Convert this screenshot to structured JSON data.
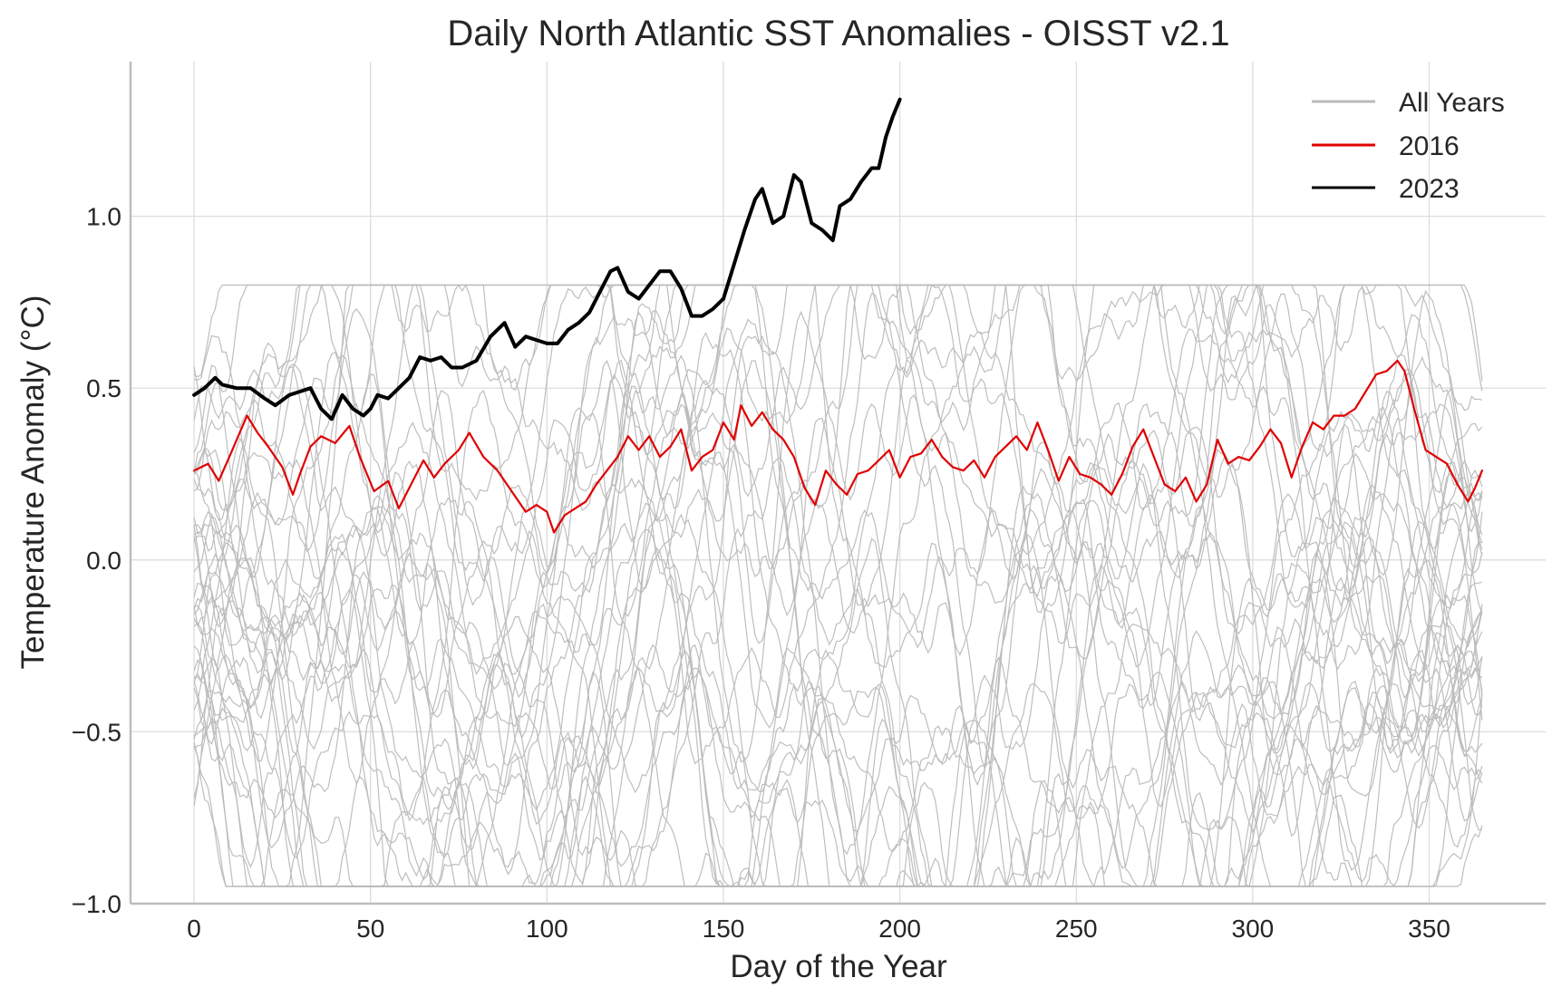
{
  "chart_data": {
    "type": "line",
    "title": "Daily North Atlantic SST Anomalies - OISST v2.1",
    "xlabel": "Day of the Year",
    "ylabel": "Temperature Anomaly (°C)",
    "xlim": [
      -18,
      383
    ],
    "ylim": [
      -1.0,
      1.45
    ],
    "xticks": [
      0,
      50,
      100,
      150,
      200,
      250,
      300,
      350
    ],
    "yticks": [
      -1.0,
      -0.5,
      0.0,
      0.5,
      1.0
    ],
    "xtick_labels": [
      "0",
      "50",
      "100",
      "150",
      "200",
      "250",
      "300",
      "350"
    ],
    "ytick_labels": [
      "−1.0",
      "−0.5",
      "0.0",
      "0.5",
      "1.0"
    ],
    "grid": true,
    "legend": {
      "position": "top-right",
      "entries": [
        "All Years",
        "2016",
        "2023"
      ]
    },
    "colors": {
      "all_years": "#bbbbbb",
      "2016": "#e00000",
      "2023": "#000000",
      "grid": "#dddddd",
      "axis": "#bdbdbd"
    },
    "background_years": {
      "label": "All Years",
      "count": 40,
      "day_range": [
        0,
        365
      ],
      "start_values": [
        0.54,
        0.52,
        0.48,
        0.4,
        0.35,
        0.3,
        0.25,
        0.22,
        0.2,
        0.18,
        0.15,
        0.12,
        0.1,
        0.08,
        0.05,
        0.02,
        -0.02,
        -0.06,
        -0.1,
        -0.15,
        -0.18,
        -0.2,
        -0.25,
        -0.28,
        -0.3,
        -0.35,
        -0.38,
        -0.42,
        -0.45,
        -0.48,
        -0.5,
        -0.52,
        -0.55,
        -0.58,
        -0.22,
        0.28,
        -0.12,
        -0.32,
        -0.73,
        -0.74
      ],
      "end_values": [
        0.52,
        0.45,
        0.42,
        0.38,
        0.28,
        0.25,
        0.2,
        0.18,
        0.15,
        0.12,
        0.1,
        0.08,
        0.05,
        0.03,
        0.0,
        -0.02,
        -0.05,
        -0.08,
        -0.12,
        -0.15,
        -0.2,
        -0.25,
        -0.28,
        -0.3,
        -0.35,
        -0.38,
        -0.42,
        -0.45,
        -0.48,
        -0.5,
        -0.55,
        -0.6,
        -0.65,
        -0.7,
        -0.45,
        0.2,
        -0.1,
        -0.25,
        -0.8,
        -0.82
      ]
    },
    "series": [
      {
        "name": "2016",
        "x": [
          0,
          4,
          7,
          10,
          15,
          18,
          21,
          25,
          28,
          30,
          33,
          36,
          40,
          44,
          47,
          51,
          55,
          58,
          62,
          65,
          68,
          71,
          75,
          78,
          82,
          86,
          90,
          94,
          97,
          100,
          102,
          105,
          108,
          111,
          114,
          117,
          120,
          123,
          126,
          129,
          132,
          135,
          138,
          141,
          144,
          147,
          150,
          153,
          155,
          158,
          161,
          164,
          167,
          170,
          173,
          176,
          179,
          182,
          185,
          188,
          191,
          194,
          197,
          200,
          203,
          206,
          209,
          212,
          215,
          218,
          221,
          224,
          227,
          230,
          233,
          236,
          239,
          242,
          245,
          248,
          251,
          254,
          257,
          260,
          263,
          266,
          269,
          272,
          275,
          278,
          281,
          284,
          287,
          290,
          293,
          296,
          299,
          302,
          305,
          308,
          311,
          314,
          317,
          320,
          323,
          326,
          329,
          332,
          335,
          338,
          341,
          343,
          346,
          349,
          352,
          355,
          358,
          361,
          363,
          365
        ],
        "y": [
          0.26,
          0.28,
          0.23,
          0.3,
          0.42,
          0.37,
          0.33,
          0.27,
          0.19,
          0.25,
          0.33,
          0.36,
          0.34,
          0.39,
          0.3,
          0.2,
          0.23,
          0.15,
          0.23,
          0.29,
          0.24,
          0.28,
          0.32,
          0.37,
          0.3,
          0.26,
          0.2,
          0.14,
          0.16,
          0.14,
          0.08,
          0.13,
          0.15,
          0.17,
          0.22,
          0.26,
          0.3,
          0.36,
          0.32,
          0.36,
          0.3,
          0.33,
          0.38,
          0.26,
          0.3,
          0.32,
          0.4,
          0.35,
          0.45,
          0.39,
          0.43,
          0.38,
          0.35,
          0.3,
          0.21,
          0.16,
          0.26,
          0.22,
          0.19,
          0.25,
          0.26,
          0.29,
          0.32,
          0.24,
          0.3,
          0.31,
          0.35,
          0.3,
          0.27,
          0.26,
          0.29,
          0.24,
          0.3,
          0.33,
          0.36,
          0.32,
          0.4,
          0.32,
          0.23,
          0.3,
          0.25,
          0.24,
          0.22,
          0.19,
          0.25,
          0.33,
          0.38,
          0.3,
          0.22,
          0.2,
          0.24,
          0.17,
          0.22,
          0.35,
          0.28,
          0.3,
          0.29,
          0.33,
          0.38,
          0.34,
          0.24,
          0.33,
          0.4,
          0.38,
          0.42,
          0.42,
          0.44,
          0.49,
          0.54,
          0.55,
          0.58,
          0.55,
          0.43,
          0.32,
          0.3,
          0.28,
          0.22,
          0.17,
          0.21,
          0.26
        ]
      },
      {
        "name": "2023",
        "x": [
          0,
          3,
          6,
          8,
          12,
          16,
          20,
          23,
          27,
          30,
          33,
          36,
          39,
          42,
          45,
          48,
          50,
          52,
          55,
          58,
          61,
          64,
          67,
          70,
          73,
          76,
          80,
          84,
          88,
          91,
          94,
          97,
          100,
          103,
          106,
          109,
          112,
          115,
          118,
          120,
          123,
          126,
          129,
          132,
          135,
          138,
          141,
          144,
          147,
          150,
          153,
          156,
          159,
          161,
          164,
          167,
          170,
          172,
          175,
          178,
          181,
          183,
          186,
          189,
          192,
          194,
          196,
          198,
          200
        ],
        "y": [
          0.48,
          0.5,
          0.53,
          0.51,
          0.5,
          0.5,
          0.47,
          0.45,
          0.48,
          0.49,
          0.5,
          0.44,
          0.41,
          0.48,
          0.44,
          0.42,
          0.44,
          0.48,
          0.47,
          0.5,
          0.53,
          0.59,
          0.58,
          0.59,
          0.56,
          0.56,
          0.58,
          0.65,
          0.69,
          0.62,
          0.65,
          0.64,
          0.63,
          0.63,
          0.67,
          0.69,
          0.72,
          0.78,
          0.84,
          0.85,
          0.78,
          0.76,
          0.8,
          0.84,
          0.84,
          0.79,
          0.71,
          0.71,
          0.73,
          0.76,
          0.86,
          0.96,
          1.05,
          1.08,
          0.98,
          1.0,
          1.12,
          1.1,
          0.98,
          0.96,
          0.93,
          1.03,
          1.05,
          1.1,
          1.14,
          1.14,
          1.23,
          1.29,
          1.34
        ]
      }
    ]
  }
}
